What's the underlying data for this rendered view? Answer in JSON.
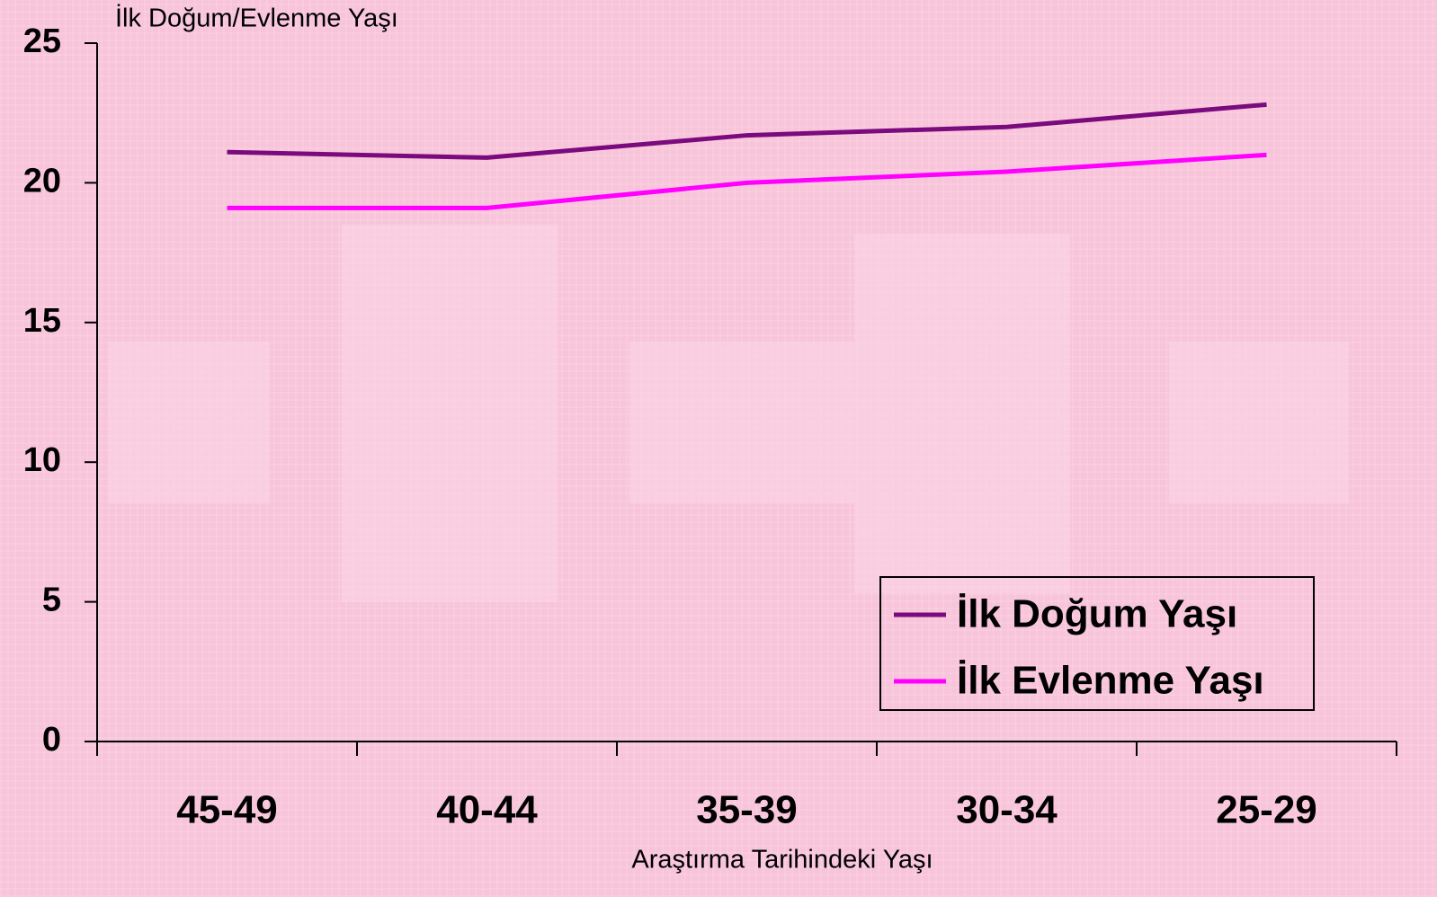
{
  "chart_data": {
    "type": "line",
    "y_label": "İlk Doğum/Evlenme Yaşı",
    "x_label": "Araştırma Tarihindeki Yaşı",
    "categories": [
      "45-49",
      "40-44",
      "35-39",
      "30-34",
      "25-29"
    ],
    "series": [
      {
        "name": "İlk Doğum Yaşı",
        "color": "#7a0a7e",
        "values": [
          21.1,
          20.9,
          21.7,
          22.0,
          22.8
        ]
      },
      {
        "name": "İlk Evlenme Yaşı",
        "color": "#ff00ff",
        "values": [
          19.1,
          19.1,
          20.0,
          20.4,
          21.0
        ]
      }
    ],
    "ylim": [
      0,
      25
    ],
    "yticks": [
      0,
      5,
      10,
      15,
      20,
      25
    ],
    "legend": "lower-right"
  }
}
